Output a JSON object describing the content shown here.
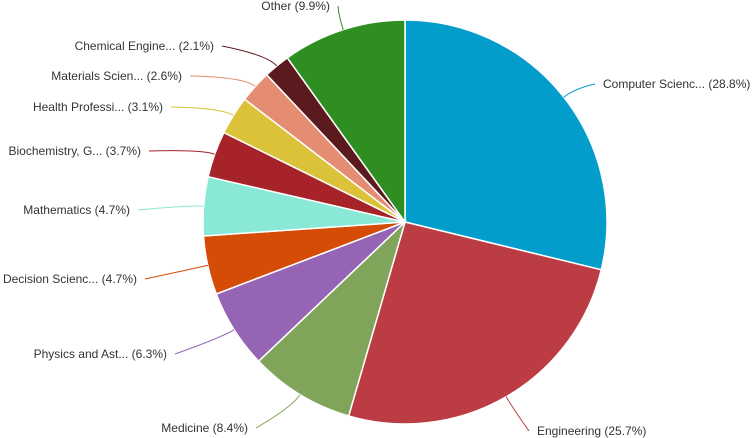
{
  "chart_data": {
    "type": "pie",
    "title": "",
    "start_angle_deg": 0,
    "direction": "clockwise",
    "slices": [
      {
        "label": "Computer Scienc... (28.8%)",
        "value": 28.8,
        "color": "#039dcc"
      },
      {
        "label": "Engineering (25.7%)",
        "value": 25.7,
        "color": "#bb3c43"
      },
      {
        "label": "Medicine (8.4%)",
        "value": 8.4,
        "color": "#80a55a"
      },
      {
        "label": "Physics and Ast... (6.3%)",
        "value": 6.3,
        "color": "#9564b4"
      },
      {
        "label": "Decision Scienc... (4.7%)",
        "value": 4.7,
        "color": "#d44c06"
      },
      {
        "label": "Mathematics (4.7%)",
        "value": 4.7,
        "color": "#8ae8d7"
      },
      {
        "label": "Biochemistry, G... (3.7%)",
        "value": 3.7,
        "color": "#a6232a"
      },
      {
        "label": "Health Professi... (3.1%)",
        "value": 3.1,
        "color": "#dcc238"
      },
      {
        "label": "Materials Scien... (2.6%)",
        "value": 2.6,
        "color": "#e48d73"
      },
      {
        "label": "Chemical Engine... (2.1%)",
        "value": 2.1,
        "color": "#5b1a1d"
      },
      {
        "label": "Other (9.9%)",
        "value": 9.9,
        "color": "#2e8e22"
      }
    ]
  }
}
